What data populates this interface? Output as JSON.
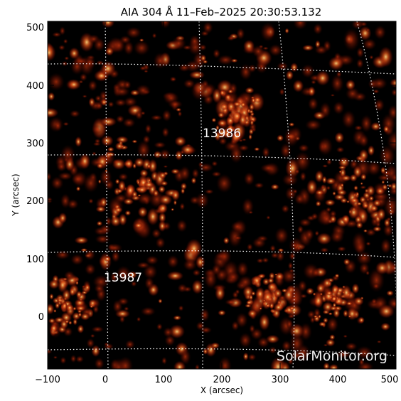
{
  "title": "AIA 304 Å 11–Feb–2025 20:30:53.132",
  "xlabel": "X (arcsec)",
  "ylabel": "Y (arcsec)",
  "x_ticks": [
    "−100",
    "0",
    "100",
    "200",
    "300",
    "400",
    "500"
  ],
  "y_ticks": [
    "0",
    "100",
    "200",
    "300",
    "400",
    "500"
  ],
  "active_regions": [
    {
      "label": "13986",
      "x": 185,
      "y": 310
    },
    {
      "label": "13987",
      "x": 0,
      "y": 65
    }
  ],
  "watermark": "SolarMonitor.org",
  "map": {
    "xlim": [
      -100,
      500
    ],
    "ylim": [
      -90,
      510
    ],
    "colormap": "sdoaia304",
    "background": "#000000",
    "grid_color": "#ffffff"
  }
}
